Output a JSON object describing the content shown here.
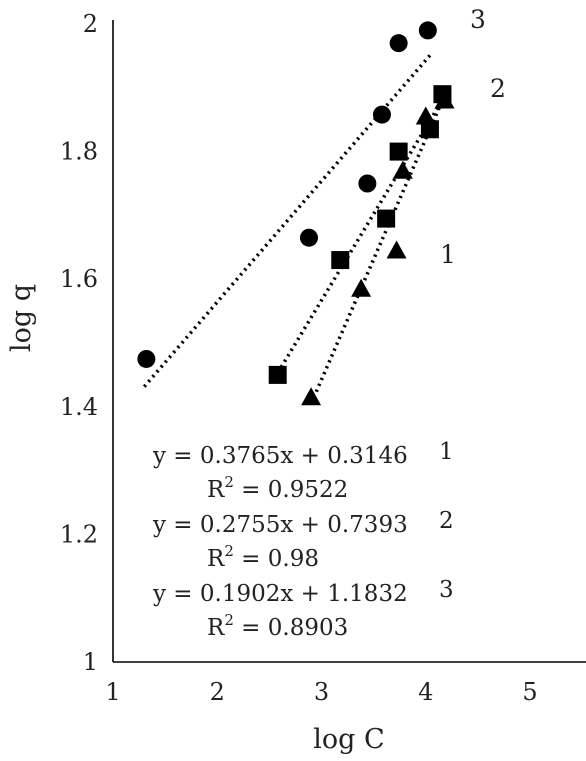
{
  "chart_data": {
    "type": "scatter",
    "xlabel": "log C",
    "ylabel": "log q",
    "xlim": [
      1,
      5
    ],
    "ylim": [
      1,
      2
    ],
    "xticks": [
      "1",
      "2",
      "3",
      "4",
      "5"
    ],
    "yticks": [
      "1",
      "1.2",
      "1.4",
      "1.6",
      "1.8",
      "2"
    ],
    "grid": false,
    "series": [
      {
        "name": "1",
        "marker": "triangle",
        "points": [
          [
            2.9,
            1.415
          ],
          [
            3.38,
            1.585
          ],
          [
            3.72,
            1.645
          ],
          [
            3.78,
            1.77
          ],
          [
            4.0,
            1.855
          ],
          [
            4.18,
            1.88
          ]
        ],
        "trend": {
          "x": [
            2.95,
            4.2
          ]
        }
      },
      {
        "name": "2",
        "marker": "square",
        "points": [
          [
            2.58,
            1.45
          ],
          [
            3.18,
            1.63
          ],
          [
            3.62,
            1.695
          ],
          [
            3.74,
            1.8
          ],
          [
            4.04,
            1.835
          ],
          [
            4.16,
            1.89
          ]
        ],
        "trend": {
          "x": [
            2.55,
            4.2
          ]
        }
      },
      {
        "name": "3",
        "marker": "circle",
        "points": [
          [
            1.32,
            1.475
          ],
          [
            2.88,
            1.665
          ],
          [
            3.44,
            1.75
          ],
          [
            3.58,
            1.858
          ],
          [
            3.74,
            1.97
          ],
          [
            4.02,
            1.99
          ]
        ],
        "trend": {
          "x": [
            1.3,
            4.05
          ]
        }
      }
    ],
    "equations": [
      {
        "label": "1",
        "equation": "y = 0.3765x + 0.3146",
        "r2_prefix": "R",
        "r2_sup": "2",
        "r2_value": " = 0.9522"
      },
      {
        "label": "2",
        "equation": "y = 0.2755x + 0.7393",
        "r2_prefix": "R",
        "r2_sup": "2",
        "r2_value": " = 0.98"
      },
      {
        "label": "3",
        "equation": "y = 0.1902x + 1.1832",
        "r2_prefix": "R",
        "r2_sup": "2",
        "r2_value": " = 0.8903"
      }
    ],
    "colors": {
      "marker": "#000000",
      "trend": "#000000",
      "text": "#222222"
    }
  }
}
